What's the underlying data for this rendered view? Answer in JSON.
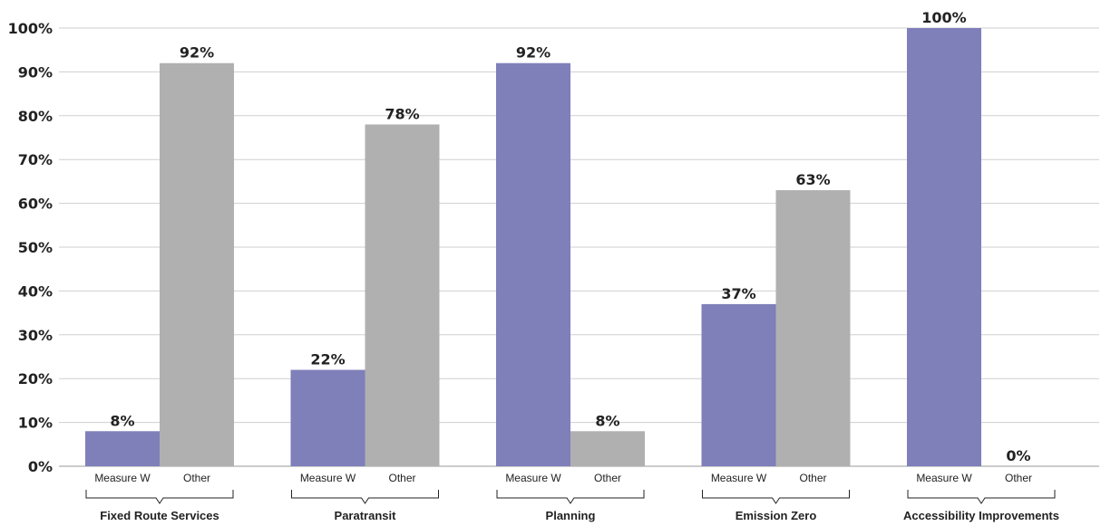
{
  "chart_data": {
    "type": "bar",
    "categories": [
      "Fixed Route Services",
      "Paratransit",
      "Planning",
      "Emission Zero",
      "Accessibility Improvements"
    ],
    "series": [
      {
        "name": "Measure W",
        "values": [
          8,
          22,
          92,
          37,
          100
        ],
        "labels": [
          "8%",
          "22%",
          "92%",
          "37%",
          "100%"
        ],
        "color": "#7f7fba"
      },
      {
        "name": "Other",
        "values": [
          92,
          78,
          8,
          63,
          0
        ],
        "labels": [
          "92%",
          "78%",
          "8%",
          "63%",
          "0%"
        ],
        "color": "#b0b0b0"
      }
    ],
    "ylim": [
      0,
      100
    ],
    "yticks": [
      0,
      10,
      20,
      30,
      40,
      50,
      60,
      70,
      80,
      90,
      100
    ],
    "ytick_labels": [
      "0%",
      "10%",
      "20%",
      "30%",
      "40%",
      "50%",
      "60%",
      "70%",
      "80%",
      "90%",
      "100%"
    ],
    "grid": true,
    "title": "",
    "xlabel": "",
    "ylabel": ""
  }
}
